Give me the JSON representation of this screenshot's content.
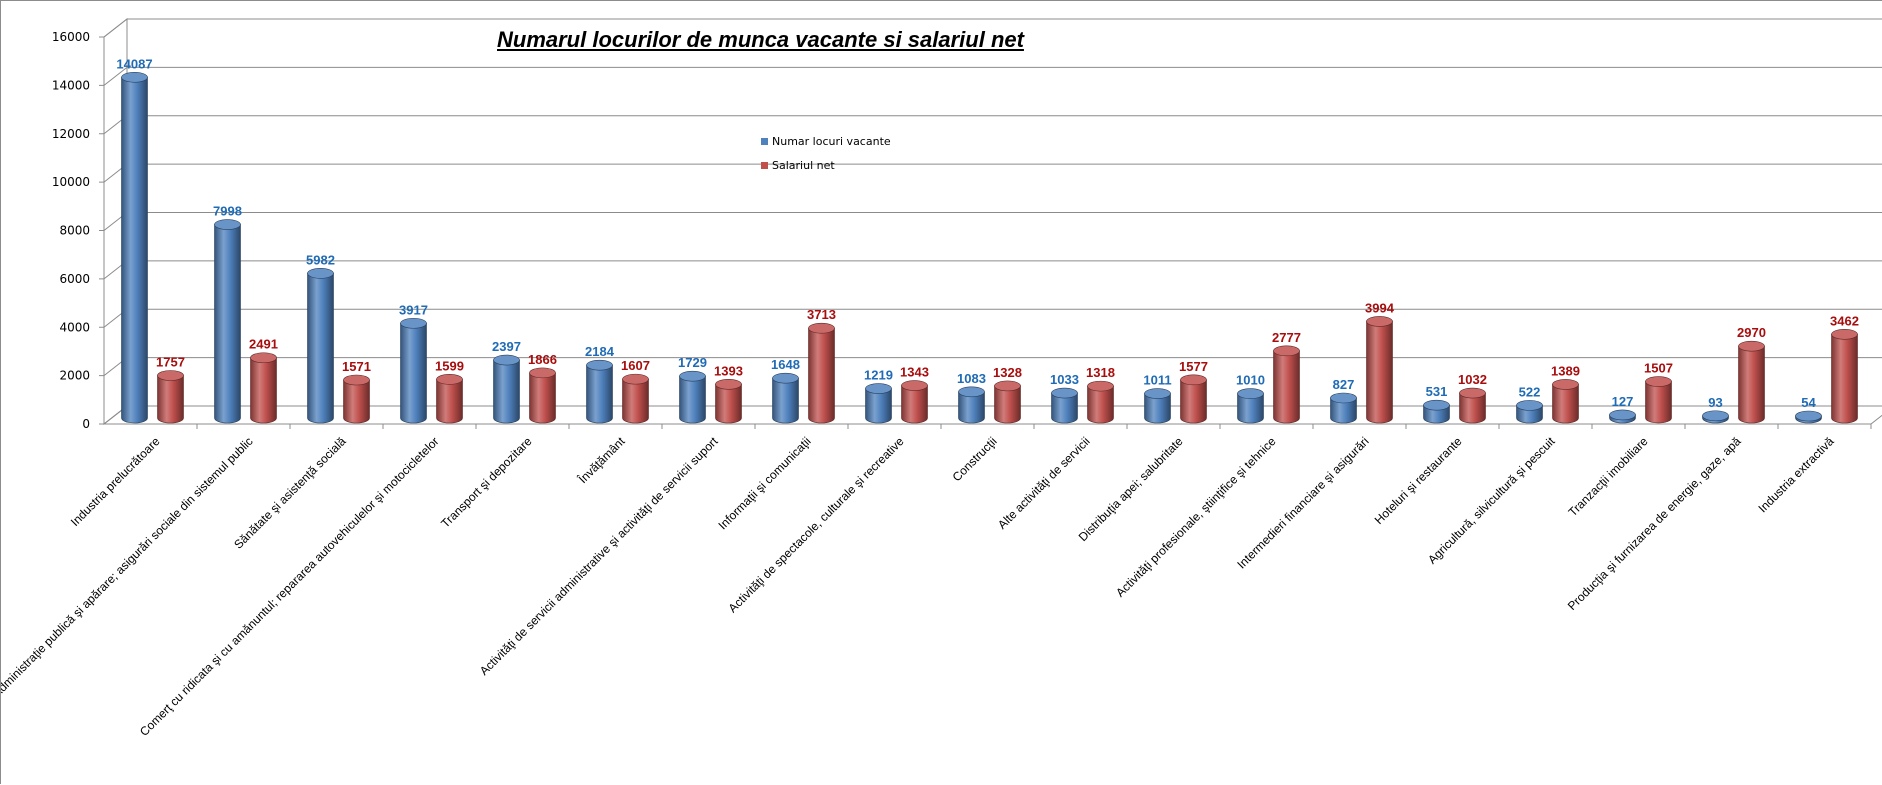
{
  "chart_data": {
    "type": "bar",
    "title": "Numarul locurilor de munca vacante si salariul net",
    "xlabel": "",
    "ylabel": "",
    "ylim": [
      0,
      16000
    ],
    "yticks": [
      0,
      2000,
      4000,
      6000,
      8000,
      10000,
      12000,
      14000,
      16000
    ],
    "grid": true,
    "legend_position": "top-center",
    "categories": [
      "Industria prelucrătoare",
      "Administraţie publică şi apărare; asigurări sociale din sistemul public",
      "Sănătate şi asistenţă socială",
      "Comerţ cu ridicata şi cu amănuntul; repararea autovehiculelor şi motocicletelor",
      "Transport şi depozitare",
      "Învăţământ",
      "Activităţi de servicii administrative şi activităţi de servicii suport",
      "Informaţii şi comunicaţii",
      "Activităţi de spectacole, culturale şi recreative",
      "Construcţii",
      "Alte activităţi de servicii",
      "Distribuţia apei; salubritate",
      "Activităţi profesionale, ştiinţifice şi tehnice",
      "Intermedieri financiare şi asigurări",
      "Hoteluri şi restaurante",
      "Agricultură, silvicultură şi pescuit",
      "Tranzacţii imobiliare",
      "Producţia şi furnizarea de energie, gaze, apă",
      "Industria extractivă"
    ],
    "series": [
      {
        "name": "Numar locuri vacante",
        "color": "#4f81bd",
        "label_color": "#1f6bb5",
        "values": [
          14087,
          7998,
          5982,
          3917,
          2397,
          2184,
          1729,
          1648,
          1219,
          1083,
          1033,
          1011,
          1010,
          827,
          531,
          522,
          127,
          93,
          54
        ]
      },
      {
        "name": "Salariul net",
        "color": "#c0504d",
        "label_color": "#a80d0d",
        "values": [
          1757,
          2491,
          1571,
          1599,
          1866,
          1607,
          1393,
          3713,
          1343,
          1328,
          1318,
          1577,
          2777,
          3994,
          1032,
          1389,
          1507,
          2970,
          3462
        ]
      }
    ]
  }
}
